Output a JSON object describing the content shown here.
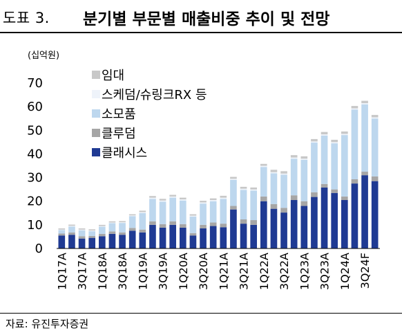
{
  "header": {
    "figure_no": "도표 3.",
    "title": "분기별 부문별 매출비중 추이 및 전망"
  },
  "footer": {
    "source": "자료: 유진투자증권"
  },
  "colors": {
    "임대": "#c8c8c8",
    "스케덤/슈링크RX 등": "#eef3fa",
    "소모품": "#bdd7ee",
    "클루덤": "#a6a6a6",
    "클래시스": "#1f3a93"
  },
  "chart_data": {
    "type": "bar",
    "stacked": true,
    "unit": "(십억원)",
    "ylim": [
      0,
      70
    ],
    "yticks": [
      "0",
      "10",
      "20",
      "30",
      "40",
      "50",
      "60",
      "70"
    ],
    "categories": [
      "1Q17A",
      "2Q17A",
      "3Q17A",
      "4Q17A",
      "1Q18A",
      "2Q18A",
      "3Q18A",
      "4Q18A",
      "1Q19A",
      "2Q19A",
      "3Q19A",
      "4Q19A",
      "1Q20A",
      "2Q20A",
      "3Q20A",
      "4Q20A",
      "1Q21A",
      "2Q21A",
      "3Q21A",
      "4Q21A",
      "1Q22A",
      "2Q22A",
      "3Q22A",
      "4Q22A",
      "1Q23A",
      "2Q23A",
      "3Q23A",
      "4Q23A",
      "1Q24A",
      "2Q24A",
      "3Q24F",
      "4Q24F"
    ],
    "xtick_labels": [
      "1Q17A",
      "3Q17A",
      "1Q18A",
      "3Q18A",
      "1Q19A",
      "3Q19A",
      "1Q20A",
      "3Q20A",
      "1Q21A",
      "3Q21A",
      "1Q22A",
      "3Q22A",
      "1Q23A",
      "3Q23A",
      "1Q24A",
      "3Q24F"
    ],
    "series": [
      {
        "name": "클래시스",
        "values": [
          5.5,
          5.8,
          4.2,
          4.5,
          5.2,
          6.2,
          5.8,
          7.5,
          6.8,
          10.0,
          8.8,
          10.0,
          8.8,
          5.5,
          8.5,
          9.5,
          9.0,
          16.5,
          10.5,
          10.0,
          20.0,
          16.8,
          15.2,
          20.5,
          18.0,
          21.8,
          25.8,
          23.5,
          20.5,
          27.5,
          31.0,
          28.5
        ]
      },
      {
        "name": "클루덤",
        "values": [
          0.8,
          1.0,
          1.0,
          0.8,
          1.0,
          1.0,
          1.0,
          1.2,
          1.2,
          1.5,
          1.5,
          1.5,
          1.5,
          1.0,
          1.5,
          1.5,
          1.5,
          1.5,
          1.8,
          2.0,
          2.0,
          2.0,
          2.0,
          2.0,
          2.0,
          2.0,
          1.5,
          1.5,
          1.5,
          1.8,
          1.5,
          2.0
        ]
      },
      {
        "name": "소모품",
        "values": [
          1.5,
          2.5,
          2.5,
          2.0,
          3.0,
          3.5,
          4.0,
          5.0,
          7.0,
          9.5,
          9.5,
          10.0,
          10.0,
          7.0,
          9.0,
          9.0,
          10.5,
          11.0,
          12.5,
          12.5,
          12.5,
          13.0,
          14.0,
          15.5,
          17.5,
          21.0,
          20.5,
          19.5,
          26.0,
          29.5,
          28.5,
          24.5
        ]
      },
      {
        "name": "스케덤/슈링크RX 등",
        "values": [
          0.2,
          0.3,
          0.3,
          0.3,
          0.3,
          0.3,
          0.3,
          0.3,
          0.4,
          0.5,
          0.5,
          0.5,
          0.5,
          0.4,
          0.5,
          0.5,
          0.5,
          0.5,
          0.5,
          0.5,
          0.5,
          0.5,
          0.5,
          0.5,
          0.5,
          0.5,
          0.5,
          0.5,
          0.5,
          0.5,
          0.5,
          0.5
        ]
      },
      {
        "name": "임대",
        "values": [
          0.5,
          0.5,
          0.5,
          0.5,
          0.5,
          0.5,
          0.5,
          0.5,
          0.6,
          0.7,
          0.7,
          0.7,
          0.7,
          0.6,
          0.7,
          0.7,
          0.8,
          0.8,
          0.8,
          0.8,
          0.8,
          1.0,
          1.0,
          1.0,
          1.0,
          1.0,
          1.0,
          1.0,
          1.0,
          1.0,
          1.0,
          1.0
        ]
      }
    ],
    "legend": {
      "placement": "top-left",
      "order": [
        "임대",
        "스케덤/슈링크RX 등",
        "소모품",
        "클루덤",
        "클래시스"
      ]
    },
    "grid": false
  }
}
